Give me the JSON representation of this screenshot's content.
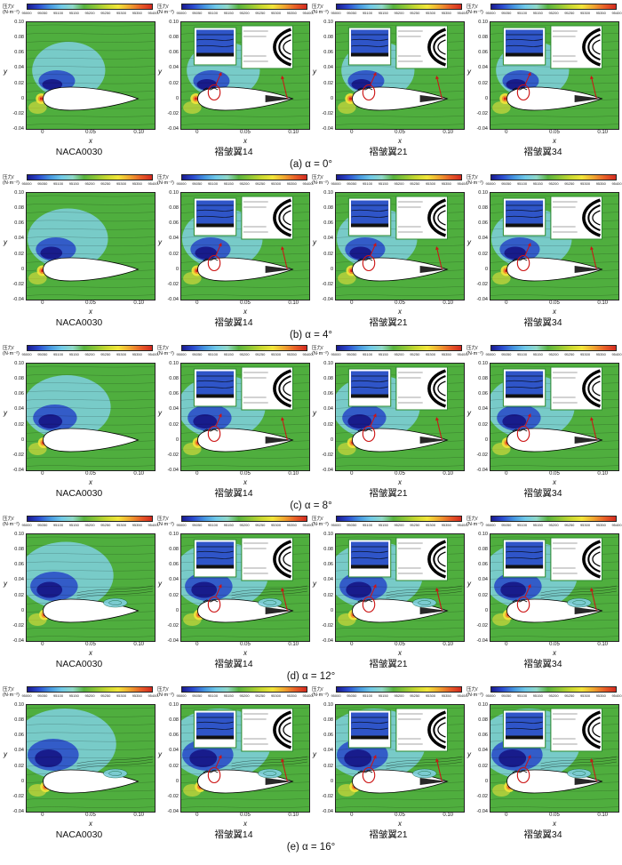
{
  "figure": {
    "colorbar": {
      "label_line1": "压力/",
      "label_line2": "(N·m⁻²)",
      "ticks": [
        "95000",
        "95050",
        "95100",
        "95150",
        "95200",
        "95250",
        "95300",
        "95350",
        "95400"
      ],
      "colors": [
        "#1a1a8f",
        "#2b4bd0",
        "#4596e0",
        "#6fc9e8",
        "#8fd8c8",
        "#57b23e",
        "#8cc636",
        "#c8d830",
        "#f2e63a",
        "#f0a830",
        "#e86028",
        "#d42a20"
      ]
    },
    "axes": {
      "x_label": "x",
      "y_label": "y",
      "x_ticks": [
        "0",
        "0.05",
        "0.10"
      ],
      "y_ticks": [
        "0.10",
        "0.08",
        "0.06",
        "0.04",
        "0.02",
        "0",
        "-0.02",
        "-0.04"
      ]
    },
    "field_colors": {
      "green": "#4fae3e",
      "cyan": "#7fd0e0",
      "blue": "#2f55c8",
      "navy": "#181c8c",
      "yellow": "#f2e63a",
      "orange": "#f0922e",
      "red": "#d42a20",
      "inset_border": "#2e8b2e",
      "annotation_red": "#cc1414"
    },
    "rows": [
      {
        "caption": "(a) α = 0°",
        "panels": [
          {
            "title": "NACA0030",
            "has_insets": false
          },
          {
            "title": "褶皱翼14",
            "has_insets": true
          },
          {
            "title": "褶皱翼21",
            "has_insets": true
          },
          {
            "title": "褶皱翼34",
            "has_insets": true
          }
        ]
      },
      {
        "caption": "(b) α = 4°",
        "panels": [
          {
            "title": "NACA0030",
            "has_insets": false
          },
          {
            "title": "褶皱翼14",
            "has_insets": true
          },
          {
            "title": "褶皱翼21",
            "has_insets": true
          },
          {
            "title": "褶皱翼34",
            "has_insets": true
          }
        ]
      },
      {
        "caption": "(c) α = 8°",
        "panels": [
          {
            "title": "NACA0030",
            "has_insets": false
          },
          {
            "title": "褶皱翼14",
            "has_insets": true
          },
          {
            "title": "褶皱翼21",
            "has_insets": true
          },
          {
            "title": "褶皱翼34",
            "has_insets": true
          }
        ]
      },
      {
        "caption": "(d) α = 12°",
        "panels": [
          {
            "title": "NACA0030",
            "has_insets": false
          },
          {
            "title": "褶皱翼14",
            "has_insets": true
          },
          {
            "title": "褶皱翼21",
            "has_insets": true
          },
          {
            "title": "褶皱翼34",
            "has_insets": true
          }
        ]
      },
      {
        "caption": "(e) α = 16°",
        "panels": [
          {
            "title": "NACA0030",
            "has_insets": false
          },
          {
            "title": "褶皱翼14",
            "has_insets": true
          },
          {
            "title": "褶皱翼21",
            "has_insets": true
          },
          {
            "title": "褶皱翼34",
            "has_insets": true
          }
        ]
      }
    ]
  },
  "chart_data": {
    "type": "heatmap",
    "title": "",
    "description": "5x4 grid of pressure contour fields with streamlines around airfoils; rows are angles of attack, columns are airfoil models; each panel has a horizontal pressure colorbar on top, red circle/arrow annotations and (for corrugated wings) two zoom insets",
    "grid_rows": [
      "(a) α = 0°",
      "(b) α = 4°",
      "(c) α = 8°",
      "(d) α = 12°",
      "(e) α = 16°"
    ],
    "grid_cols": [
      "NACA0030",
      "褶皱翼14",
      "褶皱翼21",
      "褶皱翼34"
    ],
    "xlabel": "x",
    "ylabel": "y",
    "xlim": [
      -0.02,
      0.12
    ],
    "ylim": [
      -0.04,
      0.1
    ],
    "x_ticks": [
      0,
      0.05,
      0.1
    ],
    "y_ticks": [
      0.1,
      0.08,
      0.06,
      0.04,
      0.02,
      0,
      -0.02,
      -0.04
    ],
    "colorbar_label": "压力/(N·m⁻²)",
    "colorbar_ticks": [
      95000,
      95050,
      95100,
      95150,
      95200,
      95250,
      95300,
      95350,
      95400
    ],
    "legend_position": "top",
    "grid": "off"
  }
}
